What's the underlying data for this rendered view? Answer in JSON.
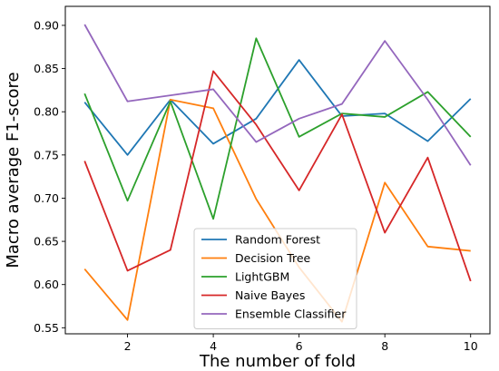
{
  "chart_data": {
    "type": "line",
    "title": "",
    "xlabel": "The number of fold",
    "ylabel": "Macro average F1-score",
    "x": [
      1,
      2,
      3,
      4,
      5,
      6,
      7,
      8,
      9,
      10
    ],
    "xlim": [
      0.55,
      10.45
    ],
    "ylim": [
      0.543,
      0.922
    ],
    "xticks": [
      2,
      4,
      6,
      8,
      10
    ],
    "yticks": [
      0.55,
      0.6,
      0.65,
      0.7,
      0.75,
      0.8,
      0.85,
      0.9
    ],
    "grid": false,
    "legend_position": "lower-center",
    "series": [
      {
        "name": "Random Forest",
        "color": "#1f77b4",
        "values": [
          0.811,
          0.75,
          0.814,
          0.763,
          0.792,
          0.86,
          0.795,
          0.798,
          0.766,
          0.815
        ]
      },
      {
        "name": "Decision Tree",
        "color": "#ff7f0e",
        "values": [
          0.618,
          0.559,
          0.814,
          0.804,
          0.699,
          0.62,
          0.557,
          0.718,
          0.644,
          0.639
        ]
      },
      {
        "name": "LightGBM",
        "color": "#2ca02c",
        "values": [
          0.821,
          0.697,
          0.812,
          0.676,
          0.885,
          0.771,
          0.798,
          0.794,
          0.823,
          0.771
        ]
      },
      {
        "name": "Naive Bayes",
        "color": "#d62728",
        "values": [
          0.743,
          0.616,
          0.64,
          0.847,
          0.785,
          0.709,
          0.797,
          0.66,
          0.747,
          0.604
        ]
      },
      {
        "name": "Ensemble Classifier",
        "color": "#9467bd",
        "values": [
          0.901,
          0.812,
          0.819,
          0.826,
          0.765,
          0.792,
          0.809,
          0.882,
          0.814,
          0.738
        ]
      }
    ]
  }
}
